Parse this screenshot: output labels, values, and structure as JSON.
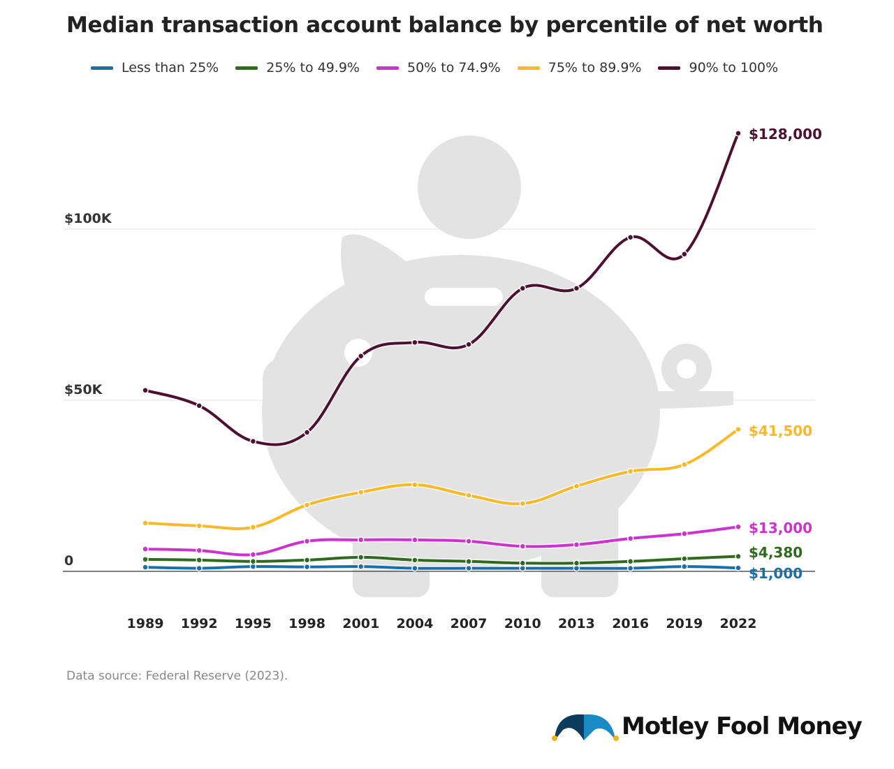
{
  "title": "Median transaction account balance by percentile of net worth",
  "source": "Data source: Federal Reserve (2023).",
  "logo_text": "Motley Fool Money",
  "chart_data": {
    "type": "line",
    "title": "Median transaction account balance by percentile of net worth",
    "x": [
      "1989",
      "1992",
      "1995",
      "1998",
      "2001",
      "2004",
      "2007",
      "2010",
      "2013",
      "2016",
      "2019",
      "2022"
    ],
    "ylim": [
      0,
      140000
    ],
    "yticks": [
      {
        "value": 0,
        "label": "0"
      },
      {
        "value": 50000,
        "label": "$50K"
      },
      {
        "value": 100000,
        "label": "$100K"
      }
    ],
    "grid": true,
    "legend": "top",
    "series": [
      {
        "name": "Less than 25%",
        "color": "#1a6fa8",
        "end_label": "$1,000",
        "values": [
          1200,
          900,
          1400,
          1300,
          1400,
          900,
          900,
          900,
          900,
          900,
          1400,
          1000
        ]
      },
      {
        "name": "25% to 49.9%",
        "color": "#2e6b1f",
        "end_label": "$4,380",
        "values": [
          3500,
          3300,
          2900,
          3300,
          4100,
          3300,
          2900,
          2400,
          2400,
          2900,
          3700,
          4380
        ]
      },
      {
        "name": "50% to 74.9%",
        "color": "#cc33cc",
        "end_label": "$13,000",
        "values": [
          6500,
          6100,
          4900,
          8800,
          9200,
          9200,
          8800,
          7300,
          7800,
          9600,
          11000,
          13000
        ]
      },
      {
        "name": "75% to 89.9%",
        "color": "#fbb829",
        "end_label": "$41,500",
        "values": [
          14100,
          13300,
          12900,
          19400,
          23100,
          25300,
          22200,
          19800,
          24900,
          29200,
          31200,
          41500
        ]
      },
      {
        "name": "90% to 100%",
        "color": "#4d1030",
        "end_label": "$128,000",
        "values": [
          52900,
          48400,
          38000,
          40600,
          62900,
          66900,
          66300,
          82700,
          82700,
          97600,
          92700,
          128000
        ]
      }
    ]
  }
}
